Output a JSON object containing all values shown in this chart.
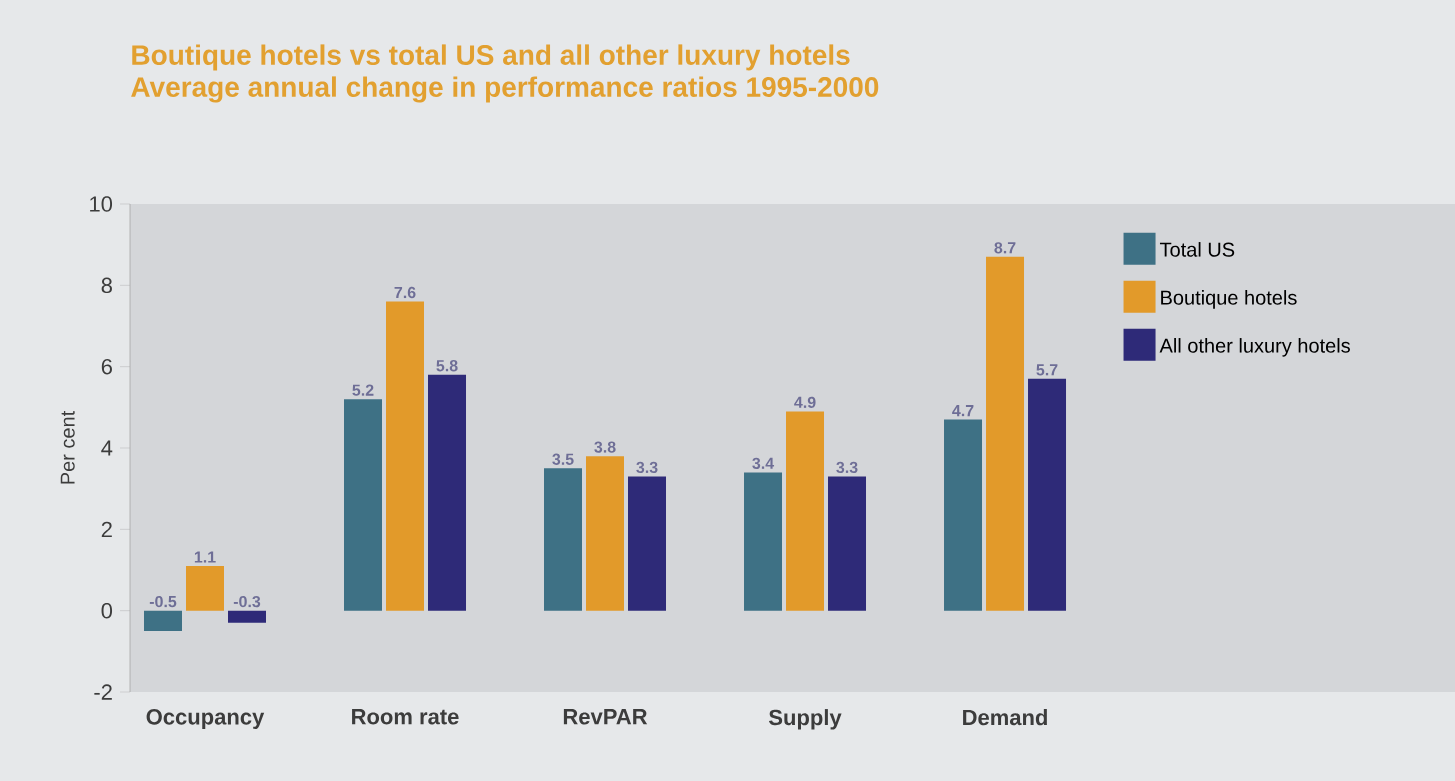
{
  "chart_data": {
    "type": "bar",
    "title": "Boutique hotels vs total US and all other luxury hotels",
    "subtitle": "Average annual change in performance ratios 1995-2000",
    "ylabel": "Per cent",
    "categories": [
      "Occupancy",
      "Room rate",
      "RevPAR",
      "Supply",
      "Demand"
    ],
    "series": [
      {
        "name": "Total US",
        "color": "#3e7185",
        "values": [
          -0.5,
          5.2,
          3.5,
          3.4,
          4.7
        ]
      },
      {
        "name": "Boutique hotels",
        "color": "#e29a2a",
        "values": [
          1.1,
          7.6,
          3.8,
          4.9,
          8.7
        ]
      },
      {
        "name": "All other luxury hotels",
        "color": "#2e2a78",
        "values": [
          -0.3,
          5.8,
          3.3,
          3.3,
          5.7
        ]
      }
    ],
    "ylim": [
      -2,
      10
    ],
    "yticks": [
      -2,
      0,
      2,
      4,
      6,
      8,
      10
    ],
    "grid": false,
    "legend": "top right",
    "data_labels": true
  }
}
